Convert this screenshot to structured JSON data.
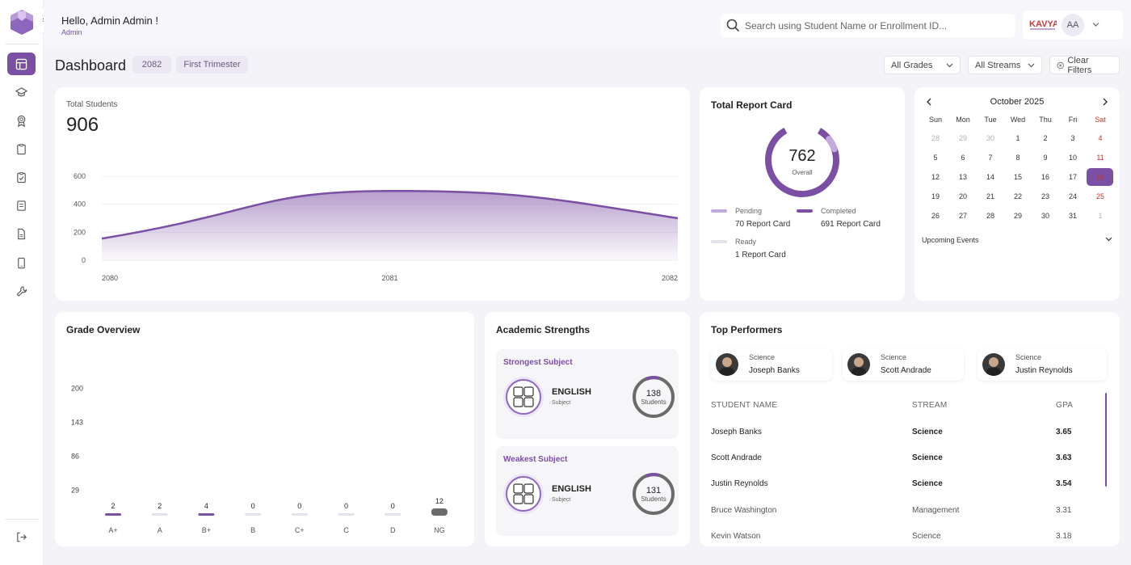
{
  "greeting": {
    "hello": "Hello, Admin Admin !",
    "role": "Admin"
  },
  "search": {
    "placeholder": "Search using Student Name or Enrollment ID..."
  },
  "user": {
    "initials": "AA",
    "brand": "KAVYA"
  },
  "page": {
    "title": "Dashboard",
    "year": "2082",
    "term": "First Trimester"
  },
  "filters": {
    "grades": "All Grades",
    "streams": "All Streams",
    "clear": "Clear Filters"
  },
  "total_students": {
    "label": "Total Students",
    "value": "906"
  },
  "report_card": {
    "title": "Total Report Card",
    "total": "762",
    "total_label": "Overall",
    "pending_label": "Pending",
    "pending_value": "70 Report Card",
    "completed_label": "Completed",
    "completed_value": "691 Report Card",
    "ready_label": "Ready",
    "ready_value": "1 Report Card",
    "colors": {
      "completed": "#7b4fa3",
      "pending": "#c4a9dc",
      "ready": "#e4e0ec"
    }
  },
  "calendar": {
    "month": "October 2025",
    "weekdays": [
      "Sun",
      "Mon",
      "Tue",
      "Wed",
      "Thu",
      "Fri",
      "Sat"
    ],
    "weeks": [
      [
        "28",
        "29",
        "30",
        "1",
        "2",
        "3",
        "4"
      ],
      [
        "5",
        "6",
        "7",
        "8",
        "9",
        "10",
        "11"
      ],
      [
        "12",
        "13",
        "14",
        "15",
        "16",
        "17",
        "18"
      ],
      [
        "19",
        "20",
        "21",
        "22",
        "23",
        "24",
        "25"
      ],
      [
        "26",
        "27",
        "28",
        "29",
        "30",
        "31",
        "1"
      ]
    ],
    "selected": "18",
    "upcoming": "Upcoming Events"
  },
  "grade_overview": {
    "title": "Grade Overview"
  },
  "academic": {
    "title": "Academic Strengths",
    "strongest": {
      "heading": "Strongest Subject",
      "subject": "ENGLISH",
      "sub": "Subject",
      "count": "138",
      "unit": "Students"
    },
    "weakest": {
      "heading": "Weakest Subject",
      "subject": "ENGLISH",
      "sub": "Subject",
      "count": "131",
      "unit": "Students"
    }
  },
  "top_performers": {
    "title": "Top Performers",
    "cards": [
      {
        "stream": "Science",
        "name": "Joseph Banks"
      },
      {
        "stream": "Science",
        "name": "Scott Andrade"
      },
      {
        "stream": "Science",
        "name": "Justin Reynolds"
      }
    ],
    "headers": {
      "name": "STUDENT NAME",
      "stream": "STREAM",
      "gpa": "GPA"
    },
    "rows": [
      {
        "name": "Joseph Banks",
        "stream": "Science",
        "gpa": "3.65"
      },
      {
        "name": "Scott Andrade",
        "stream": "Science",
        "gpa": "3.63"
      },
      {
        "name": "Justin Reynolds",
        "stream": "Science",
        "gpa": "3.54"
      },
      {
        "name": "Bruce Washington",
        "stream": "Management",
        "gpa": "3.31"
      },
      {
        "name": "Kevin Watson",
        "stream": "Science",
        "gpa": "3.18"
      }
    ]
  },
  "chart_data": [
    {
      "type": "area",
      "title": "",
      "x": [
        "2080",
        "2081",
        "2082"
      ],
      "values": [
        155,
        495,
        300
      ],
      "yticks": [
        0,
        200,
        400,
        600
      ],
      "ylim": [
        0,
        600
      ],
      "color": "#7b4fa3"
    },
    {
      "type": "bar",
      "title": "Grade Overview",
      "categories": [
        "A+",
        "A",
        "B+",
        "B",
        "C+",
        "C",
        "D",
        "NG"
      ],
      "values": [
        2,
        2,
        4,
        0,
        0,
        0,
        0,
        12
      ],
      "yticks": [
        29,
        86,
        143,
        200
      ],
      "ylim": [
        0,
        220
      ],
      "colors": [
        "#7b4fa3",
        "#e4e0ec",
        "#7b4fa3",
        "#e4e0ec",
        "#e4e0ec",
        "#e4e0ec",
        "#e4e0ec",
        "#6b6b6b"
      ]
    }
  ]
}
